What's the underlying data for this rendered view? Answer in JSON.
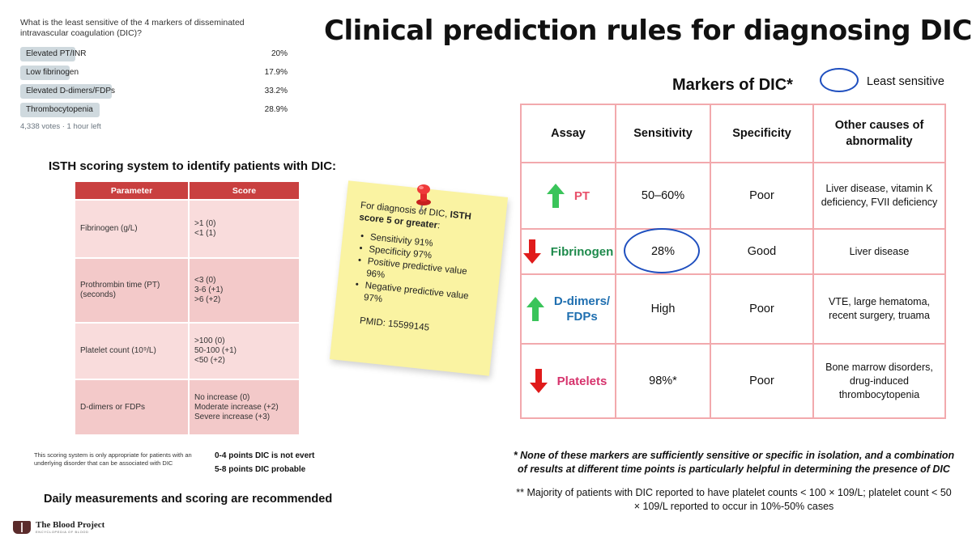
{
  "poll": {
    "question": "What is the least sensitive of the 4 markers of disseminated intravascular coagulation (DIC)?",
    "options": [
      {
        "label": "Elevated PT/INR",
        "percent": "20%",
        "value": 20.0
      },
      {
        "label": "Low fibrinogen",
        "percent": "17.9%",
        "value": 17.9
      },
      {
        "label": "Elevated D-dimers/FDPs",
        "percent": "33.2%",
        "value": 33.2
      },
      {
        "label": "Thrombocytopenia",
        "percent": "28.9%",
        "value": 28.9
      }
    ],
    "meta": "4,338 votes · 1 hour left",
    "bar_color": "#cfd9de"
  },
  "title": "Clinical prediction rules for diagnosing DIC",
  "isth": {
    "title": "ISTH scoring system to identify patients with DIC:",
    "headers": [
      "Parameter",
      "Score"
    ],
    "rows": [
      {
        "parameter": "Fibrinogen (g/L)",
        "scores": [
          ">1 (0)",
          "<1 (1)"
        ]
      },
      {
        "parameter": "Prothrombin time (PT) (seconds)",
        "scores": [
          "<3 (0)",
          "3-6 (+1)",
          ">6 (+2)"
        ]
      },
      {
        "parameter": "Platelet count (10⁹/L)",
        "scores": [
          ">100 (0)",
          "50-100 (+1)",
          "<50 (+2)"
        ]
      },
      {
        "parameter": "D-dimers or FDPs",
        "scores": [
          "No increase (0)",
          "Moderate increase (+2)",
          "Severe increase (+3)"
        ]
      }
    ],
    "note": "This scoring system is only appropriate for patients with an underlying disorder that can be associated with DIC",
    "points": [
      "0-4 points DIC is not evert",
      "5-8 points DIC probable"
    ],
    "daily": "Daily measurements and scoring are recommended",
    "header_color": "#c94040"
  },
  "sticky": {
    "intro_plain": "For diagnosis of DIC, ",
    "intro_bold": "ISTH score 5 or greater",
    "intro_end": ":",
    "bullets": [
      "Sensitivity 91%",
      "Specificity 97%",
      "Positive predictive value 96%",
      "Negative predictive value 97%"
    ],
    "pmid": "PMID: 15599145",
    "color": "#faf3a2"
  },
  "logo": {
    "name": "The Blood Project",
    "subtitle": "ENCYCLOPEDIA OF BLOOD"
  },
  "markers": {
    "title": "Markers of DIC*",
    "legend_label": "Least sensitive",
    "headers": [
      "Assay",
      "Sensitivity",
      "Specificity",
      "Other causes of abnormality"
    ],
    "rows": [
      {
        "assay": "PT",
        "direction": "up",
        "color": "#e8506a",
        "sensitivity": "50–60%",
        "specificity": "Poor",
        "causes": "Liver disease, vitamin K deficiency, FVII deficiency"
      },
      {
        "assay": "Fibrinogen",
        "direction": "down",
        "color": "#1e8a4c",
        "sensitivity": "28%",
        "specificity": "Good",
        "causes": "Liver disease",
        "least_sensitive": true
      },
      {
        "assay": "D-dimers/ FDPs",
        "direction": "up",
        "color": "#1f6fb0",
        "sensitivity": "High",
        "specificity": "Poor",
        "causes": "VTE, large hematoma, recent surgery, truama"
      },
      {
        "assay": "Platelets",
        "direction": "down",
        "color": "#d6336c",
        "sensitivity": "98%*",
        "specificity": "Poor",
        "causes": "Bone marrow disorders, drug-induced thrombocytopenia"
      }
    ],
    "up_arrow_color": "#3ac45a",
    "down_arrow_color": "#e01b1b",
    "border_color": "#f2a9ad",
    "circle_color": "#1f4fbf"
  },
  "footnotes": {
    "star": "* None of these markers are sufficiently sensitive or specific in isolation, and a combination of results at different time points is particularly helpful in determining the presence of DIC",
    "double_star": "** Majority of patients with DIC reported to have platelet counts < 100 × 109/L; platelet count < 50 × 109/L reported to occur in 10%-50% cases"
  }
}
